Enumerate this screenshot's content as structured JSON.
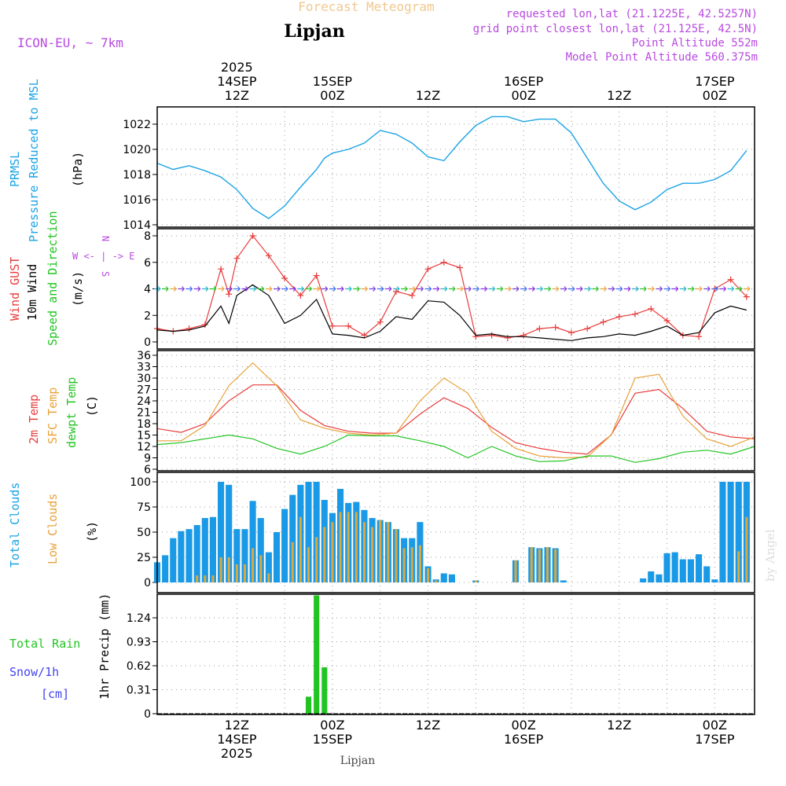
{
  "header": {
    "title": "Forecast Meteogram",
    "location": "Lipjan",
    "model": "ICON-EU, ~ 7km",
    "requested": "requested lon,lat (21.1225E, 42.5257N)",
    "gridpoint": "grid point closest lon,lat (21.125E, 42.5N)",
    "point_alt": "Point Altitude 552m",
    "model_alt": "Model Point Altitude 560.375m",
    "footer": "Lipjan",
    "watermark": "by Angel"
  },
  "colors": {
    "pressure": "#1aa3e6",
    "gust": "#e83c3c",
    "wind": "#000000",
    "temp": "#e83c3c",
    "sfc": "#e8a23c",
    "dew": "#22c422",
    "total_clouds": "#1a9ae6",
    "low_clouds": "#d9a840",
    "rain": "#22c422",
    "snow": "#4444ee",
    "purple": "#b84ae0"
  },
  "time_axis": {
    "top_labels": [
      {
        "lines": [
          "2025",
          "14SEP",
          "12Z"
        ],
        "hour": 12
      },
      {
        "lines": [
          "15SEP",
          "00Z"
        ],
        "hour": 24
      },
      {
        "lines": [
          "12Z"
        ],
        "hour": 36
      },
      {
        "lines": [
          "16SEP",
          "00Z"
        ],
        "hour": 48
      },
      {
        "lines": [
          "12Z"
        ],
        "hour": 60
      },
      {
        "lines": [
          "17SEP",
          "00Z"
        ],
        "hour": 72
      }
    ],
    "bottom_labels": [
      {
        "lines": [
          "12Z",
          "14SEP",
          "2025"
        ],
        "hour": 12
      },
      {
        "lines": [
          "00Z",
          "15SEP"
        ],
        "hour": 24
      },
      {
        "lines": [
          "12Z"
        ],
        "hour": 36
      },
      {
        "lines": [
          "00Z",
          "16SEP"
        ],
        "hour": 48
      },
      {
        "lines": [
          "12Z"
        ],
        "hour": 60
      },
      {
        "lines": [
          "00Z",
          "17SEP"
        ],
        "hour": 72
      }
    ],
    "start_hour": 2,
    "end_hour": 77
  },
  "panels": {
    "pressure": {
      "labels": [
        "PRMSL",
        "Pressure Reduced to MSL"
      ],
      "unit": "(hPa)",
      "ticks": [
        "1014",
        "1016",
        "1018",
        "1020",
        "1022"
      ]
    },
    "wind": {
      "labels": [
        "Wind GUST",
        "10m Wind",
        "Speed and Direction"
      ],
      "unit": "(m/s)",
      "ticks": [
        "0",
        "2",
        "4",
        "6",
        "8"
      ],
      "compass_n": "N",
      "compass_we": "W <- | -> E",
      "compass_s": "S"
    },
    "temp": {
      "labels": [
        "2m Temp",
        "SFC Temp",
        "dewpt Temp"
      ],
      "unit": "(C)",
      "ticks": [
        "6",
        "9",
        "12",
        "15",
        "18",
        "21",
        "24",
        "27",
        "30",
        "33",
        "36"
      ]
    },
    "clouds": {
      "labels": [
        "Total Clouds",
        "Low Clouds"
      ],
      "unit": "(%)",
      "ticks": [
        "0",
        "25",
        "50",
        "75",
        "100"
      ]
    },
    "precip": {
      "label_rain": "Total  Rain",
      "label_snow": "Snow/1h",
      "label_cm": "[cm]",
      "unit": "1hr Precip (mm)",
      "ticks": [
        "0",
        "0.31",
        "0.62",
        "0.93",
        "1.24"
      ]
    }
  },
  "chart_data": [
    {
      "type": "line",
      "title": "PRMSL Pressure Reduced to MSL",
      "ylabel": "hPa",
      "ylim": [
        1014,
        1023.4
      ],
      "x": [
        2,
        4,
        6,
        8,
        10,
        12,
        14,
        16,
        18,
        20,
        22,
        23,
        24,
        26,
        28,
        30,
        32,
        34,
        36,
        38,
        40,
        42,
        44,
        46,
        48,
        50,
        52,
        54,
        56,
        58,
        60,
        62,
        64,
        66,
        68,
        70,
        72,
        74,
        76
      ],
      "series": [
        {
          "name": "PRMSL",
          "values": [
            1018.9,
            1018.4,
            1018.7,
            1018.3,
            1017.8,
            1016.8,
            1015.3,
            1014.5,
            1015.5,
            1017.0,
            1018.4,
            1019.3,
            1019.7,
            1020.0,
            1020.5,
            1021.5,
            1021.2,
            1020.5,
            1019.4,
            1019.1,
            1020.6,
            1021.9,
            1022.6,
            1022.6,
            1022.2,
            1022.4,
            1022.4,
            1021.3,
            1019.3,
            1017.3,
            1015.9,
            1015.2,
            1015.8,
            1016.8,
            1017.3,
            1017.3,
            1017.6,
            1018.3,
            1019.9
          ]
        }
      ]
    },
    {
      "type": "line",
      "title": "Wind GUST / 10m Wind Speed",
      "ylabel": "m/s",
      "ylim": [
        0,
        8.5
      ],
      "x": [
        2,
        4,
        6,
        8,
        10,
        11,
        12,
        14,
        16,
        18,
        20,
        22,
        24,
        26,
        28,
        30,
        32,
        34,
        36,
        38,
        40,
        42,
        44,
        46,
        48,
        50,
        52,
        54,
        56,
        58,
        60,
        62,
        64,
        66,
        68,
        70,
        72,
        74,
        76
      ],
      "series": [
        {
          "name": "Wind GUST",
          "values": [
            1.0,
            0.8,
            1.0,
            1.3,
            5.5,
            3.6,
            6.3,
            8.0,
            6.5,
            4.8,
            3.5,
            5.0,
            1.2,
            1.2,
            0.5,
            1.5,
            3.8,
            3.5,
            5.5,
            6.0,
            5.6,
            0.4,
            0.5,
            0.3,
            0.5,
            1.0,
            1.1,
            0.7,
            1.0,
            1.5,
            1.9,
            2.1,
            2.5,
            1.6,
            0.5,
            0.4,
            4.0,
            4.7,
            3.4
          ]
        },
        {
          "name": "10m Wind",
          "values": [
            0.9,
            0.8,
            0.9,
            1.2,
            2.7,
            1.4,
            3.5,
            4.3,
            3.5,
            1.4,
            2.0,
            3.2,
            0.6,
            0.5,
            0.3,
            0.8,
            1.9,
            1.7,
            3.1,
            3.0,
            2.0,
            0.5,
            0.6,
            0.4,
            0.4,
            0.3,
            0.2,
            0.1,
            0.3,
            0.4,
            0.6,
            0.5,
            0.8,
            1.2,
            0.5,
            0.7,
            2.2,
            2.7,
            2.4
          ]
        }
      ]
    },
    {
      "type": "line",
      "title": "2m Temp / SFC Temp / dewpt Temp",
      "ylabel": "C",
      "ylim": [
        6,
        36
      ],
      "x": [
        2,
        5,
        8,
        11,
        14,
        17,
        20,
        23,
        26,
        29,
        32,
        35,
        38,
        41,
        44,
        47,
        50,
        53,
        56,
        59,
        62,
        65,
        68,
        71,
        74,
        77
      ],
      "series": [
        {
          "name": "2m Temp",
          "values": [
            16.7,
            15.7,
            18.0,
            24.0,
            28.2,
            28.2,
            21.5,
            17.5,
            16.0,
            15.5,
            15.5,
            20.5,
            24.8,
            22.0,
            17.0,
            13.0,
            11.5,
            10.5,
            10.0,
            15.0,
            26.0,
            27.0,
            22.0,
            16.0,
            14.5,
            14.0
          ]
        },
        {
          "name": "SFC Temp",
          "values": [
            13.5,
            13.5,
            17.5,
            28.0,
            34.0,
            28.0,
            19.0,
            16.8,
            15.5,
            15.0,
            15.5,
            24.0,
            30.0,
            26.0,
            16.0,
            11.5,
            9.5,
            9.0,
            9.2,
            15.0,
            30.0,
            31.0,
            20.0,
            14.0,
            12.0,
            14.5
          ]
        },
        {
          "name": "dewpt Temp",
          "values": [
            12.5,
            13.0,
            14.0,
            15.0,
            14.0,
            11.5,
            10.0,
            12.0,
            15.0,
            14.8,
            14.8,
            13.5,
            12.0,
            9.0,
            12.0,
            9.5,
            8.0,
            8.2,
            9.5,
            9.5,
            7.8,
            8.8,
            10.5,
            11.0,
            10.0,
            12.0
          ]
        }
      ]
    },
    {
      "type": "bar",
      "title": "Total Clouds / Low Clouds",
      "ylabel": "%",
      "ylim": [
        0,
        100
      ],
      "x": [
        2,
        3,
        4,
        5,
        6,
        7,
        8,
        9,
        10,
        11,
        12,
        13,
        14,
        15,
        16,
        17,
        18,
        19,
        20,
        21,
        22,
        23,
        24,
        25,
        26,
        27,
        28,
        29,
        30,
        31,
        32,
        33,
        34,
        35,
        36,
        37,
        38,
        39,
        42,
        47,
        49,
        50,
        51,
        52,
        53,
        63,
        64,
        65,
        66,
        67,
        68,
        69,
        70,
        71,
        72,
        73,
        74,
        75,
        76
      ],
      "series": [
        {
          "name": "Total Clouds",
          "values": [
            20,
            27,
            44,
            51,
            53,
            57,
            64,
            65,
            100,
            97,
            53,
            53,
            81,
            64,
            30,
            50,
            73,
            87,
            97,
            100,
            100,
            82,
            69,
            93,
            79,
            80,
            72,
            64,
            62,
            60,
            53,
            44,
            44,
            60,
            16,
            3,
            9,
            8,
            2,
            22,
            35,
            34,
            35,
            34,
            2,
            4,
            11,
            8,
            29,
            30,
            23,
            23,
            28,
            16,
            3,
            100,
            100,
            100,
            100
          ]
        },
        {
          "name": "Low Clouds",
          "values": [
            0,
            0,
            0,
            0,
            0,
            7,
            7,
            7,
            25,
            25,
            18,
            18,
            34,
            27,
            9,
            0,
            0,
            40,
            65,
            35,
            45,
            55,
            60,
            70,
            70,
            70,
            60,
            55,
            62,
            60,
            53,
            34,
            35,
            37,
            14,
            2,
            0,
            0,
            2,
            22,
            35,
            33,
            35,
            33,
            0,
            0,
            0,
            0,
            0,
            0,
            0,
            0,
            0,
            0,
            0,
            0,
            0,
            31,
            65
          ]
        }
      ]
    },
    {
      "type": "bar",
      "title": "1hr Precip",
      "ylabel": "mm",
      "ylim": [
        0,
        1.55
      ],
      "x": [
        21,
        22,
        23
      ],
      "series": [
        {
          "name": "Total Rain",
          "values": [
            0.22,
            1.53,
            0.6
          ]
        }
      ]
    }
  ]
}
